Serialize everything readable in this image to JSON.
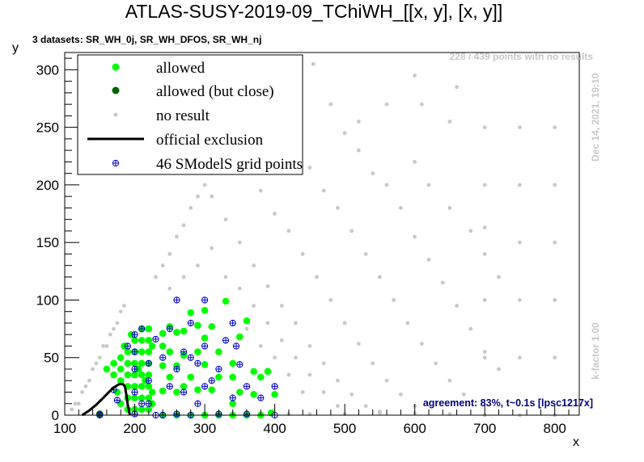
{
  "chart_data": {
    "type": "scatter",
    "title": "ATLAS-SUSY-2019-09_TChiWH_[[x, y], [x, y]]",
    "subtitle": "3 datasets: SR_WH_0j, SR_WH_DFOS, SR_WH_nj",
    "xlabel": "x",
    "ylabel": "y",
    "xlim": [
      100,
      835
    ],
    "ylim": [
      0,
      315
    ],
    "xticks": [
      "100",
      "200",
      "300",
      "400",
      "500",
      "600",
      "700",
      "800"
    ],
    "yticks": [
      "0",
      "50",
      "100",
      "150",
      "200",
      "250",
      "300"
    ],
    "legend_position": "top-left",
    "colors": {
      "allowed": "#00ff00",
      "allowed_close": "#006400",
      "no_result": "#c8c8c8",
      "exclusion": "#000000",
      "grid_points": "#0000cc"
    },
    "series": [
      {
        "name": "allowed",
        "marker": "filled-circle",
        "color": "#00ff00",
        "points": [
          [
            190,
            5
          ],
          [
            190,
            15
          ],
          [
            190,
            25
          ],
          [
            190,
            35
          ],
          [
            190,
            45
          ],
          [
            190,
            55
          ],
          [
            200,
            5
          ],
          [
            200,
            15
          ],
          [
            200,
            25
          ],
          [
            200,
            35
          ],
          [
            200,
            45
          ],
          [
            200,
            55
          ],
          [
            200,
            65
          ],
          [
            210,
            5
          ],
          [
            210,
            15
          ],
          [
            210,
            25
          ],
          [
            210,
            35
          ],
          [
            210,
            45
          ],
          [
            210,
            55
          ],
          [
            210,
            65
          ],
          [
            210,
            75
          ],
          [
            220,
            5
          ],
          [
            220,
            15
          ],
          [
            220,
            25
          ],
          [
            220,
            35
          ],
          [
            220,
            45
          ],
          [
            220,
            55
          ],
          [
            220,
            65
          ],
          [
            220,
            75
          ],
          [
            180,
            10
          ],
          [
            180,
            30
          ],
          [
            180,
            40
          ],
          [
            180,
            50
          ],
          [
            170,
            35
          ],
          [
            170,
            45
          ],
          [
            160,
            40
          ],
          [
            175,
            20
          ],
          [
            185,
            60
          ],
          [
            195,
            70
          ],
          [
            205,
            40
          ],
          [
            215,
            30
          ],
          [
            225,
            10
          ],
          [
            225,
            20
          ],
          [
            225,
            60
          ],
          [
            240,
            0
          ],
          [
            240,
            21
          ],
          [
            240,
            43
          ],
          [
            240,
            60
          ],
          [
            240,
            71
          ],
          [
            250,
            33
          ],
          [
            250,
            55
          ],
          [
            250,
            77
          ],
          [
            260,
            0
          ],
          [
            260,
            20
          ],
          [
            260,
            43
          ],
          [
            260,
            72
          ],
          [
            270,
            25
          ],
          [
            270,
            52
          ],
          [
            270,
            73
          ],
          [
            280,
            0
          ],
          [
            280,
            33
          ],
          [
            280,
            89
          ],
          [
            290,
            22
          ],
          [
            290,
            55
          ],
          [
            290,
            78
          ],
          [
            300,
            0
          ],
          [
            300,
            44
          ],
          [
            300,
            67
          ],
          [
            300,
            91
          ],
          [
            310,
            22
          ],
          [
            310,
            77
          ],
          [
            320,
            0
          ],
          [
            320,
            33
          ],
          [
            320,
            55
          ],
          [
            330,
            99
          ],
          [
            340,
            0
          ],
          [
            340,
            10
          ],
          [
            340,
            33
          ],
          [
            340,
            45
          ],
          [
            350,
            20
          ],
          [
            350,
            68
          ],
          [
            360,
            0
          ],
          [
            360,
            82
          ],
          [
            370,
            18
          ],
          [
            370,
            38
          ],
          [
            380,
            0
          ],
          [
            380,
            33
          ],
          [
            390,
            38
          ],
          [
            395,
            2
          ],
          [
            400,
            18
          ]
        ]
      },
      {
        "name": "allowed (but close)",
        "marker": "filled-circle",
        "color": "#006400",
        "points": [
          [
            150,
            1
          ]
        ]
      },
      {
        "name": "no result",
        "marker": "small-dot",
        "color": "#c8c8c8",
        "points": [
          [
            110,
            5
          ],
          [
            115,
            10
          ],
          [
            120,
            10
          ],
          [
            125,
            20
          ],
          [
            130,
            25
          ],
          [
            135,
            30
          ],
          [
            140,
            40
          ],
          [
            145,
            45
          ],
          [
            150,
            50
          ],
          [
            155,
            60
          ],
          [
            160,
            60
          ],
          [
            165,
            70
          ],
          [
            170,
            75
          ],
          [
            175,
            80
          ],
          [
            180,
            90
          ],
          [
            185,
            95
          ],
          [
            230,
            120
          ],
          [
            240,
            130
          ],
          [
            250,
            140
          ],
          [
            260,
            155
          ],
          [
            270,
            165
          ],
          [
            280,
            180
          ],
          [
            290,
            190
          ],
          [
            300,
            200
          ],
          [
            310,
            210
          ],
          [
            320,
            220
          ],
          [
            330,
            235
          ],
          [
            340,
            245
          ],
          [
            350,
            255
          ],
          [
            360,
            250
          ],
          [
            380,
            265
          ],
          [
            400,
            280
          ],
          [
            430,
            290
          ],
          [
            455,
            305
          ],
          [
            480,
            270
          ],
          [
            500,
            245
          ],
          [
            520,
            255
          ],
          [
            560,
            270
          ],
          [
            600,
            295
          ],
          [
            610,
            270
          ],
          [
            650,
            255
          ],
          [
            660,
            285
          ],
          [
            700,
            250
          ],
          [
            750,
            250
          ],
          [
            800,
            250
          ],
          [
            310,
            190
          ],
          [
            330,
            170
          ],
          [
            350,
            150
          ],
          [
            370,
            130
          ],
          [
            390,
            112
          ],
          [
            410,
            95
          ],
          [
            430,
            80
          ],
          [
            450,
            60
          ],
          [
            470,
            45
          ],
          [
            490,
            30
          ],
          [
            510,
            18
          ],
          [
            530,
            8
          ],
          [
            550,
            3
          ],
          [
            380,
            195
          ],
          [
            400,
            175
          ],
          [
            420,
            160
          ],
          [
            440,
            140
          ],
          [
            460,
            120
          ],
          [
            480,
            100
          ],
          [
            500,
            80
          ],
          [
            520,
            62
          ],
          [
            540,
            45
          ],
          [
            560,
            30
          ],
          [
            580,
            18
          ],
          [
            600,
            8
          ],
          [
            450,
            215
          ],
          [
            470,
            195
          ],
          [
            490,
            180
          ],
          [
            510,
            160
          ],
          [
            530,
            140
          ],
          [
            550,
            120
          ],
          [
            570,
            100
          ],
          [
            590,
            80
          ],
          [
            610,
            62
          ],
          [
            630,
            45
          ],
          [
            650,
            30
          ],
          [
            670,
            18
          ],
          [
            520,
            230
          ],
          [
            540,
            210
          ],
          [
            560,
            200
          ],
          [
            580,
            180
          ],
          [
            600,
            155
          ],
          [
            620,
            135
          ],
          [
            640,
            115
          ],
          [
            660,
            95
          ],
          [
            680,
            75
          ],
          [
            700,
            55
          ],
          [
            720,
            40
          ],
          [
            600,
            220
          ],
          [
            620,
            200
          ],
          [
            650,
            180
          ],
          [
            680,
            160
          ],
          [
            700,
            140
          ],
          [
            720,
            120
          ],
          [
            700,
            200
          ],
          [
            750,
            200
          ],
          [
            800,
            200
          ],
          [
            700,
            163
          ],
          [
            750,
            150
          ],
          [
            800,
            150
          ],
          [
            700,
            100
          ],
          [
            750,
            100
          ],
          [
            800,
            100
          ],
          [
            700,
            50
          ],
          [
            750,
            50
          ],
          [
            800,
            50
          ],
          [
            700,
            0
          ],
          [
            750,
            0
          ],
          [
            800,
            0
          ],
          [
            650,
            1
          ],
          [
            600,
            2
          ],
          [
            550,
            2
          ],
          [
            500,
            1
          ],
          [
            450,
            1
          ],
          [
            420,
            1
          ],
          [
            330,
            120
          ],
          [
            350,
            110
          ],
          [
            370,
            95
          ],
          [
            390,
            80
          ],
          [
            410,
            65
          ],
          [
            430,
            50
          ],
          [
            450,
            35
          ],
          [
            470,
            20
          ],
          [
            490,
            8
          ],
          [
            250,
            110
          ],
          [
            270,
            120
          ],
          [
            290,
            130
          ],
          [
            310,
            145
          ],
          [
            360,
            75
          ],
          [
            380,
            60
          ],
          [
            400,
            50
          ],
          [
            420,
            35
          ],
          [
            440,
            20
          ]
        ]
      },
      {
        "name": "46 SModelS grid points",
        "marker": "open-cross",
        "color": "#0000cc",
        "points": [
          [
            150,
            0
          ],
          [
            175,
            13
          ],
          [
            190,
            60
          ],
          [
            200,
            1
          ],
          [
            200,
            20
          ],
          [
            200,
            40
          ],
          [
            200,
            55
          ],
          [
            210,
            75
          ],
          [
            220,
            10
          ],
          [
            220,
            30
          ],
          [
            220,
            45
          ],
          [
            230,
            66
          ],
          [
            240,
            0
          ],
          [
            240,
            50
          ],
          [
            250,
            25
          ],
          [
            250,
            75
          ],
          [
            260,
            1
          ],
          [
            260,
            40
          ],
          [
            270,
            20
          ],
          [
            270,
            55
          ],
          [
            280,
            0
          ],
          [
            280,
            80
          ],
          [
            290,
            10
          ],
          [
            290,
            45
          ],
          [
            300,
            25
          ],
          [
            300,
            60
          ],
          [
            300,
            100
          ],
          [
            320,
            1
          ],
          [
            320,
            40
          ],
          [
            330,
            65
          ],
          [
            340,
            15
          ],
          [
            340,
            80
          ],
          [
            350,
            44
          ],
          [
            360,
            1
          ],
          [
            360,
            25
          ],
          [
            380,
            15
          ],
          [
            400,
            0
          ],
          [
            400,
            25
          ],
          [
            210,
            10
          ],
          [
            230,
            0
          ],
          [
            200,
            70
          ],
          [
            260,
            100
          ],
          [
            280,
            50
          ],
          [
            310,
            30
          ],
          [
            345,
            60
          ],
          [
            170,
            22
          ]
        ]
      },
      {
        "name": "official exclusion",
        "marker": "line",
        "color": "#000000",
        "points": [
          [
            125,
            0
          ],
          [
            135,
            4
          ],
          [
            145,
            9
          ],
          [
            155,
            15
          ],
          [
            163,
            20
          ],
          [
            170,
            24
          ],
          [
            178,
            27
          ],
          [
            183,
            27
          ],
          [
            186,
            25
          ],
          [
            188,
            18
          ],
          [
            190,
            9
          ],
          [
            193,
            0
          ]
        ]
      }
    ]
  },
  "annotations": {
    "no_results": "228 / 439 points with no results",
    "timestamp": "Dec 14, 2021, 19:10",
    "kfactor": "k-factor 1.00",
    "agreement": "agreement: 83%, t~0.1s [lpsc1217x]"
  }
}
